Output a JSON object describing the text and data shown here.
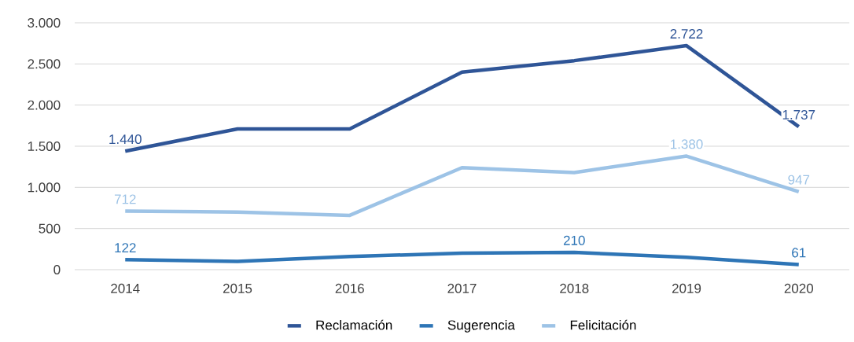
{
  "chart_data": {
    "type": "line",
    "categories": [
      "2014",
      "2015",
      "2016",
      "2017",
      "2018",
      "2019",
      "2020"
    ],
    "series": [
      {
        "name": "Reclamación",
        "color": "#2f5597",
        "values": [
          1440,
          1710,
          1710,
          2400,
          2540,
          2722,
          1737
        ],
        "value_labels": [
          "1.440",
          null,
          null,
          null,
          null,
          "2.722",
          "1.737"
        ]
      },
      {
        "name": "Sugerencia",
        "color": "#2e75b6",
        "values": [
          122,
          100,
          160,
          200,
          210,
          150,
          61
        ],
        "value_labels": [
          "122",
          null,
          null,
          null,
          "210",
          null,
          "61"
        ]
      },
      {
        "name": "Felicitación",
        "color": "#9dc3e6",
        "values": [
          712,
          700,
          660,
          1240,
          1180,
          1380,
          947
        ],
        "value_labels": [
          "712",
          null,
          null,
          null,
          null,
          "1.380",
          "947"
        ]
      }
    ],
    "ylim": [
      0,
      3000
    ],
    "yticks": [
      {
        "value": 0,
        "label": "0"
      },
      {
        "value": 500,
        "label": "500"
      },
      {
        "value": 1000,
        "label": "1.000"
      },
      {
        "value": 1500,
        "label": "1.500"
      },
      {
        "value": 2000,
        "label": "2.000"
      },
      {
        "value": 2500,
        "label": "2.500"
      },
      {
        "value": 3000,
        "label": "3.000"
      }
    ],
    "grid": "y",
    "legend": "bottom",
    "marker": "none"
  }
}
